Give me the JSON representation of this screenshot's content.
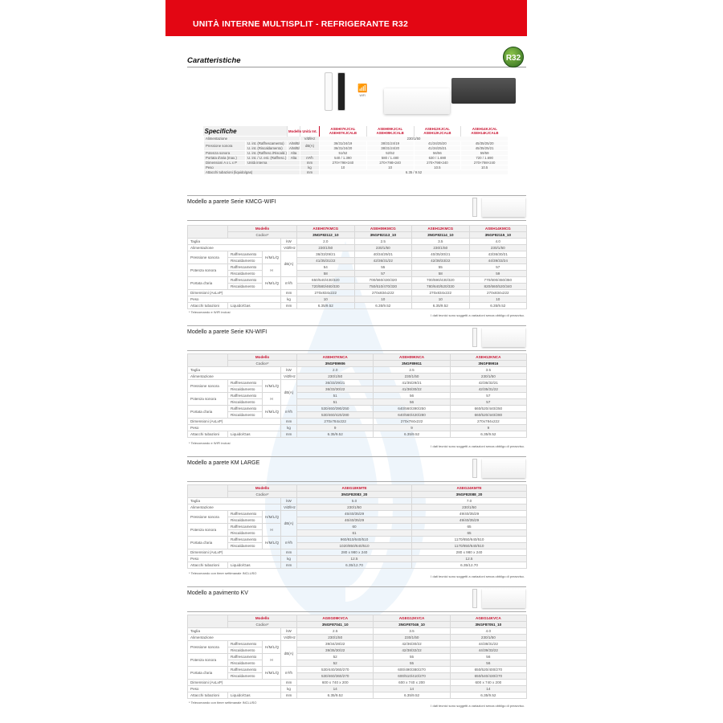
{
  "header": {
    "title": "UNITÀ INTERNE MULTISPLIT - REFRIGERANTE R32"
  },
  "caratteristiche": {
    "title": "Caratteristiche",
    "badge": "R32",
    "wifi_label": "WIFI"
  },
  "specifiche": {
    "title": "Specifiche",
    "col_model": "Modello",
    "col_unit": "Unità Int.",
    "models": [
      [
        "ASEH07KJCAL",
        "ASEH07KJCALB"
      ],
      [
        "ASEH09KJCAL",
        "ASEH09KJCALB"
      ],
      [
        "ASEH12KJCAL",
        "ASEH12KJCALB"
      ],
      [
        "ASEH14KJCAL",
        "ASEH14KJCALB"
      ]
    ],
    "rows": [
      {
        "label": "Alimentazione",
        "sub": "",
        "mode": "",
        "unit": "V/Ø/Hz",
        "span": "230/1/50"
      },
      {
        "label": "Pressione sonora",
        "sub": "U. int. (Raffrescamento)",
        "mode": "A/M/B/S",
        "unit": "dB(A)",
        "values": [
          "36/31/24/19",
          "38/31/24/19",
          "41/34/25/20",
          "45/35/25/20"
        ]
      },
      {
        "label": "",
        "sub": "U. int. (Riscaldamento)",
        "mode": "A/M/B/S",
        "unit": "",
        "values": [
          "36/31/24/20",
          "38/31/24/20",
          "41/34/25/21",
          "45/35/25/21"
        ]
      },
      {
        "label": "Potenza sonora",
        "sub": "U. int. (Raffresc./Riscald.)",
        "mode": "Alta",
        "unit": "",
        "values": [
          "51/52",
          "52/52",
          "56/56",
          "59/59"
        ]
      },
      {
        "label": "Portata d'aria (max.)",
        "sub": "U. int. / U. est. (Raffresc.)",
        "mode": "Alta",
        "unit": "m³/h",
        "values": [
          "540 / 1.390",
          "580 / 1.480",
          "630 / 1.690",
          "720 / 1.690"
        ]
      },
      {
        "label": "Dimensioni A x L x P",
        "sub": "Unità interna",
        "mode": "",
        "unit": "mm",
        "values": [
          "270×798×240",
          "270×798×240",
          "270×798×240",
          "270×798×240"
        ]
      },
      {
        "label": "Peso",
        "sub": "",
        "mode": "",
        "unit": "kg",
        "values": [
          "10",
          "10",
          "10.5",
          "10.5"
        ]
      },
      {
        "label": "Attacchi tubazioni (liquido/gas)",
        "sub": "",
        "mode": "",
        "unit": "mm",
        "span": "6.35 / 9.52"
      }
    ]
  },
  "labels": {
    "modello": "Modello",
    "codice": "Codice*",
    "taglia": "Taglia",
    "kw": "kW",
    "alimentazione": "Alimentazione",
    "vhz": "V/Ø/Hz",
    "pressione": "Pressione sonora",
    "potenza": "Potenza sonora",
    "portata": "Portata d'aria",
    "raff": "Raffrescamento",
    "risc": "Riscaldamento",
    "hmlq": "H/M/L/Q",
    "h": "H",
    "dba": "dB(A)",
    "m3h": "m³/h",
    "dimensioni": "Dimensioni (AxLxP)",
    "mm": "mm",
    "peso": "Peso",
    "kg": "kg",
    "attacchi": "Attacchi tubazioni",
    "liqgas": "Liquido/Gas",
    "disclaimer": "I dati tecnici sono soggetti a variazioni senza obbligo di preavviso."
  },
  "sections": [
    {
      "title": "Modello a parete Serie KMCG-WIFI",
      "footnote": "* Telecomando e WIFI inclusi",
      "models": [
        "ASEH07KMCG",
        "ASEH09KMCG",
        "ASEH12KMCG",
        "ASEH14KMCG"
      ],
      "codes": [
        "3NGF82112_10",
        "3NGF82113_10",
        "3NGF82114_10",
        "3NGF82115_10"
      ],
      "taglia": [
        "2.0",
        "2.5",
        "3.5",
        "4.0"
      ],
      "alimentazione": [
        "230/1/50",
        "230/1/50",
        "230/1/50",
        "230/1/50"
      ],
      "pressione_raff": [
        "36/33/29/21",
        "40/34/29/21",
        "40/35/30/21",
        "43/36/30/21"
      ],
      "pressione_risc": [
        "41/35/31/22",
        "42/36/31/22",
        "42/38/33/22",
        "44/39/33/24"
      ],
      "potenza_raff": [
        "54",
        "55",
        "55",
        "57"
      ],
      "potenza_risc": [
        "58",
        "57",
        "58",
        "59"
      ],
      "portata_raff": [
        "650/540/430/320",
        "700/560/430/320",
        "700/590/430/320",
        "770/600/450/350"
      ],
      "portata_risc": [
        "720/580/460/330",
        "750/610/470/330",
        "780/640/520/330",
        "820/660/520/340"
      ],
      "dimensioni": [
        "270x834x222",
        "270x834x222",
        "270x834x222",
        "270x834x222"
      ],
      "peso": [
        "10",
        "10",
        "10",
        "10"
      ],
      "attacchi": [
        "6.35/9.52",
        "6.35/9.52",
        "6.35/9.52",
        "6.35/9.52"
      ]
    },
    {
      "title": "Modello a parete Serie KN-WIFI",
      "footnote": "* Telecomando e WIFI inclusi",
      "models": [
        "ASEH07KNCA",
        "ASEH09KNCA",
        "ASEH12KNCA"
      ],
      "codes": [
        "3NGF89906",
        "3NGF89911",
        "3NGF89916"
      ],
      "taglia": [
        "2.0",
        "2.5",
        "3.5"
      ],
      "alimentazione": [
        "230/1/50",
        "230/1/50",
        "230/1/50"
      ],
      "pressione_raff": [
        "36/33/29/21",
        "41/35/29/21",
        "42/36/32/21"
      ],
      "pressione_risc": [
        "36/33/30/22",
        "41/36/30/22",
        "42/35/31/22"
      ],
      "potenza_raff": [
        "51",
        "56",
        "57"
      ],
      "potenza_risc": [
        "51",
        "56",
        "57"
      ],
      "portata_raff": [
        "530/460/390/250",
        "640/560/390/250",
        "660/520/440/250"
      ],
      "portata_risc": [
        "530/460/420/280",
        "640/560/420/280",
        "660/520/440/280"
      ],
      "dimensioni": [
        "270x784x222",
        "270x784x222",
        "270x784x222"
      ],
      "peso": [
        "9",
        "9",
        "9"
      ],
      "attacchi": [
        "6.35/9.52",
        "6.35/9.52",
        "6.35/9.52"
      ]
    },
    {
      "title": "Modello a parete KM LARGE",
      "footnote": "* Telecomando con timer settimanale INCLUSO",
      "models": [
        "ASEG18KMTE",
        "ASEG24KMTE"
      ],
      "codes": [
        "3NGF82083_20",
        "3NGF82088_20"
      ],
      "taglia": [
        "5.0",
        "7.0"
      ],
      "alimentazione": [
        "230/1/50",
        "230/1/50"
      ],
      "pressione_raff": [
        "45/40/35/29",
        "49/40/35/29"
      ],
      "pressione_risc": [
        "46/40/35/29",
        "49/40/35/29"
      ],
      "potenza_raff": [
        "60",
        "65"
      ],
      "potenza_risc": [
        "61",
        "65"
      ],
      "portata_raff": [
        "960/810/640/510",
        "1170/850/640/510"
      ],
      "portata_risc": [
        "1020/850/640/510",
        "1170/850/640/510"
      ],
      "dimensioni": [
        "280 x 980 x 240",
        "280 x 980 x 240"
      ],
      "peso": [
        "12.5",
        "12.5"
      ],
      "attacchi": [
        "6.35/12.70",
        "6.35/12.70"
      ]
    },
    {
      "title": "Modello a pavimento KV",
      "footnote": "* Telecomando con timer settimanale INCLUSO",
      "models": [
        "AGEG09KVCA",
        "AGEG12KVCA",
        "AGEG14KVCA"
      ],
      "codes": [
        "3NGF87041_10",
        "3NGF87046_10",
        "3NGF87051_10"
      ],
      "taglia": [
        "2.5",
        "3.5",
        "4.0"
      ],
      "alimentazione": [
        "230/1/50",
        "230/1/50",
        "230/1/50"
      ],
      "pressione_raff": [
        "39/34/28/22",
        "42/36/30/22",
        "44/38/31/22"
      ],
      "pressione_risc": [
        "39/35/30/22",
        "42/38/32/22",
        "44/39/33/22"
      ],
      "potenza_raff": [
        "52",
        "55",
        "56"
      ],
      "potenza_risc": [
        "52",
        "55",
        "56"
      ],
      "portata_raff": [
        "530/440/360/270",
        "600/490/380/270",
        "650/520/400/270"
      ],
      "portata_risc": [
        "530/460/360/270",
        "600/510/410/270",
        "650/540/430/270"
      ],
      "dimensioni": [
        "600 x 740 x 200",
        "600 x 740 x 200",
        "600 x 740 x 200"
      ],
      "peso": [
        "14",
        "14",
        "14"
      ],
      "attacchi": [
        "6.35/9.52",
        "6.35/9.52",
        "6.35/9.52"
      ]
    }
  ],
  "colors": {
    "brand_red": "#e30613",
    "model_red": "#c8102e"
  }
}
